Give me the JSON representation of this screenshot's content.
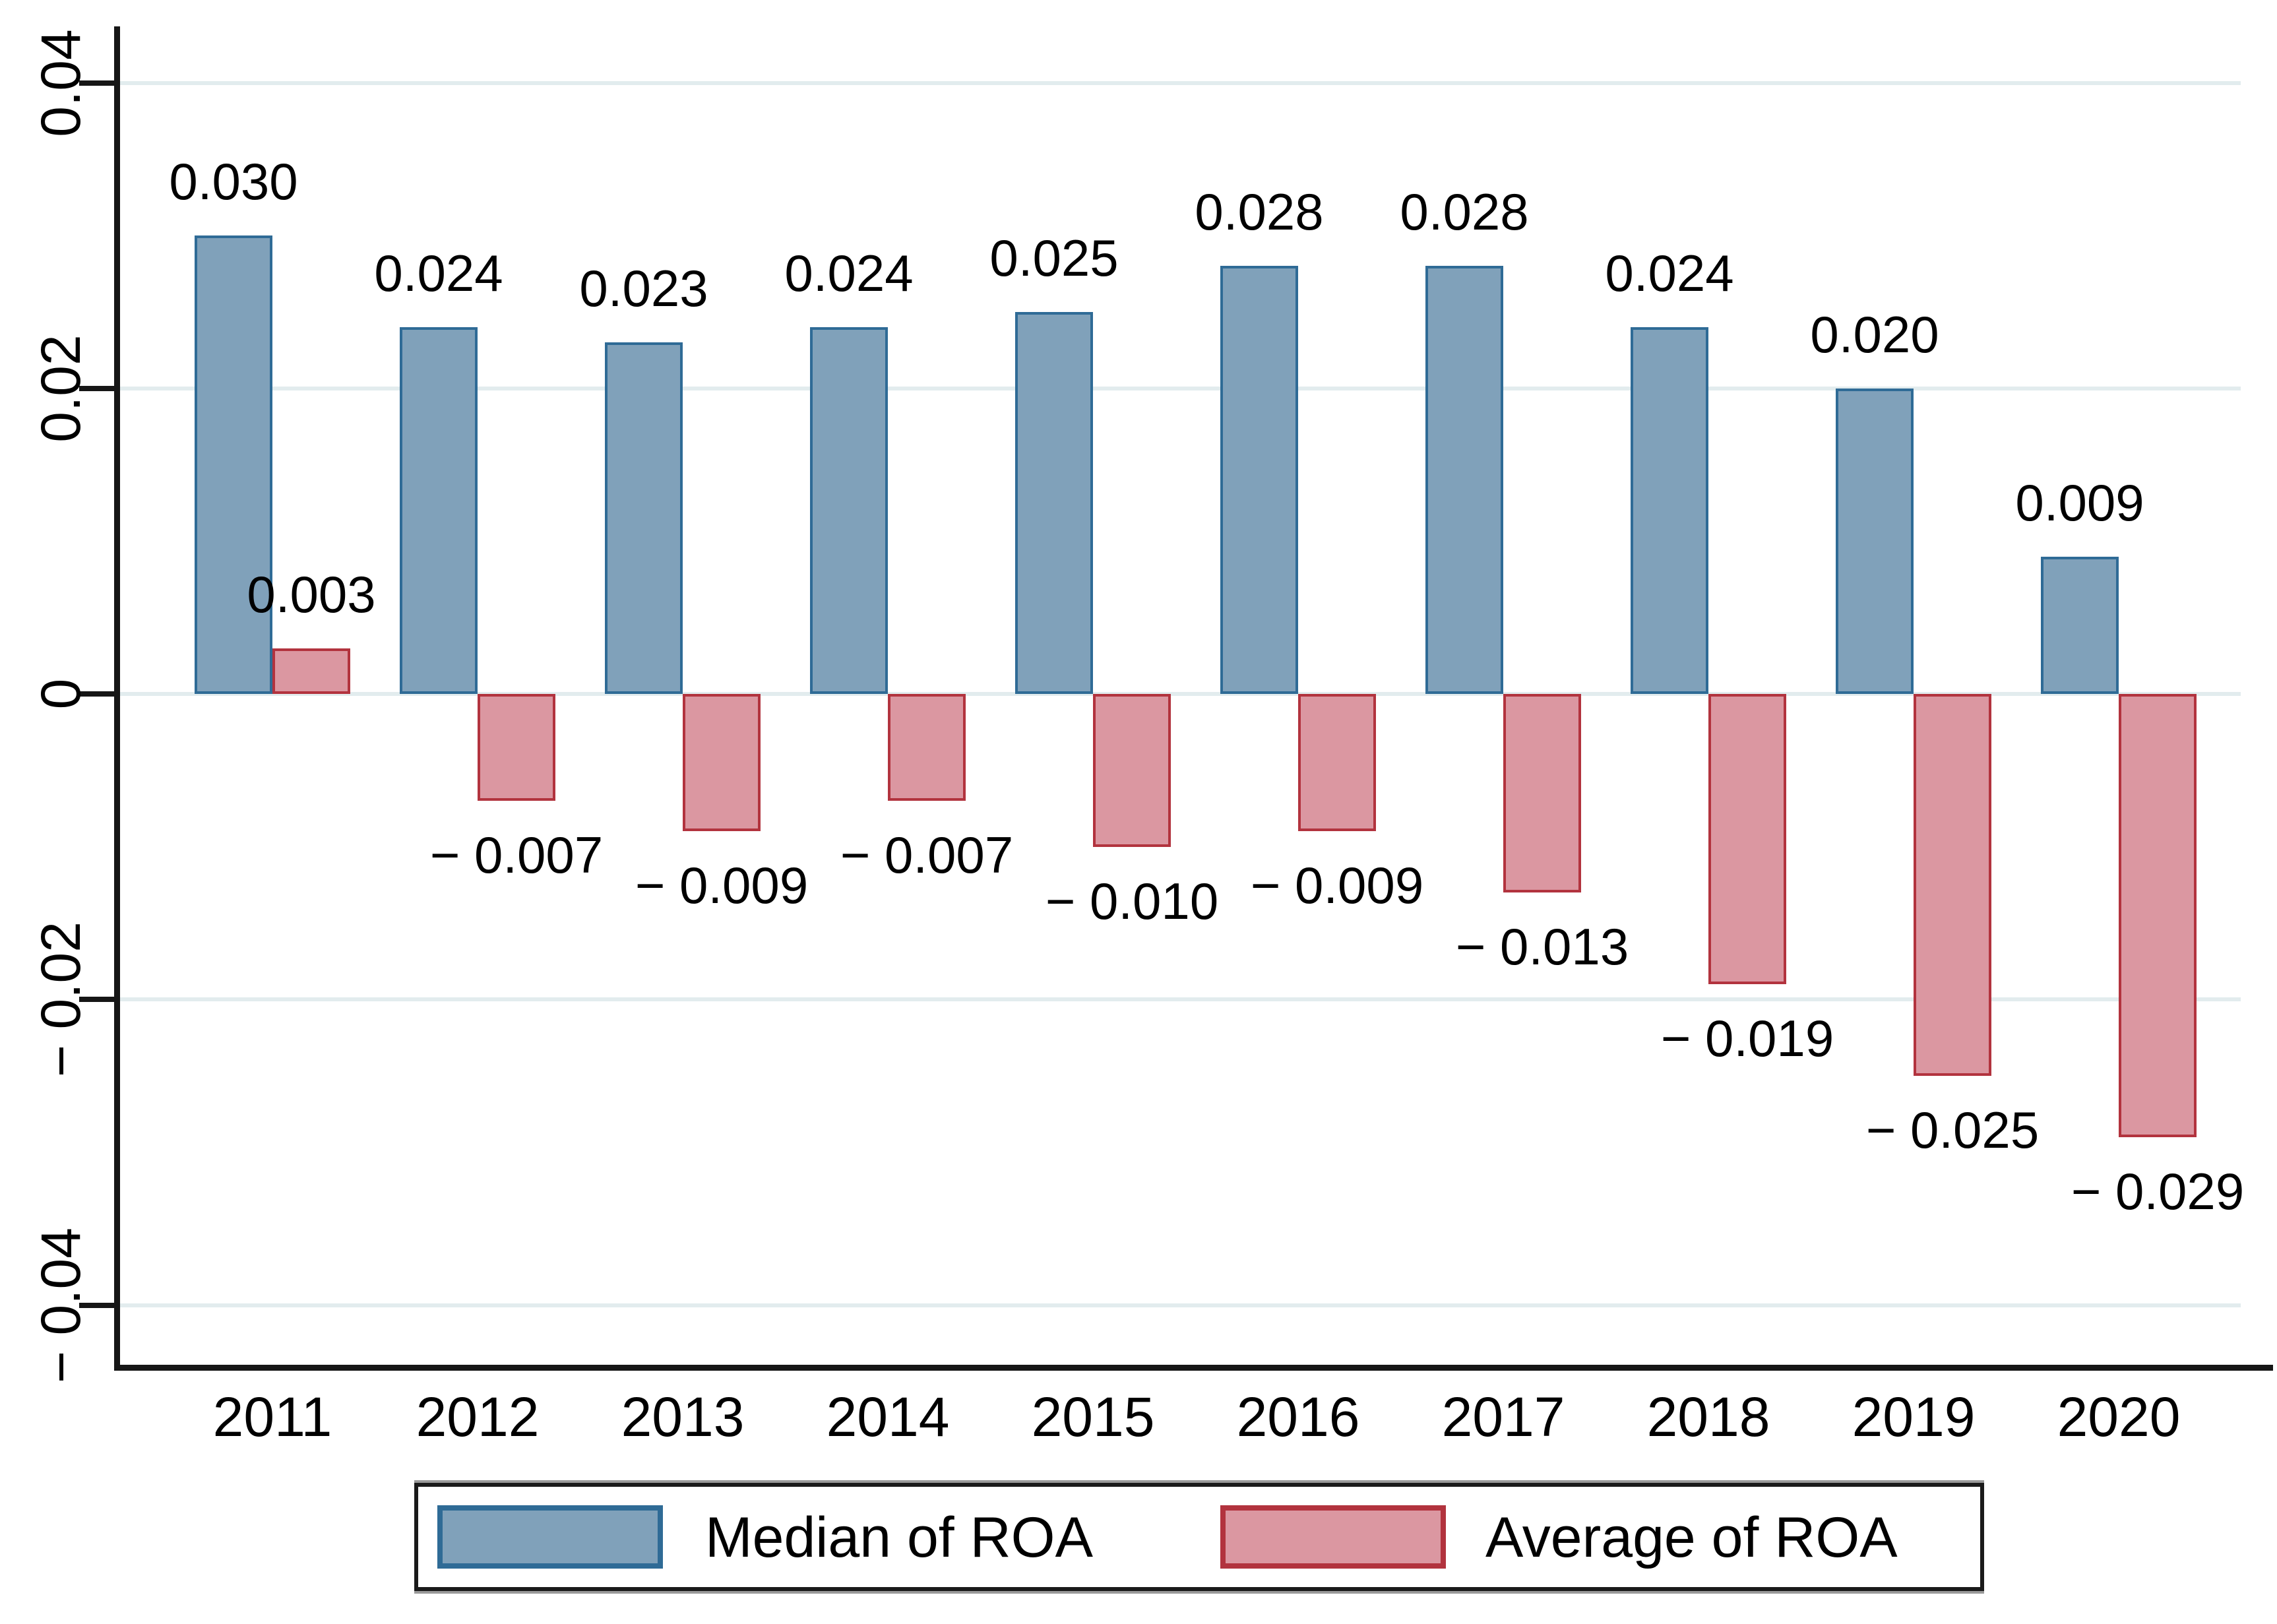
{
  "chart_data": {
    "type": "bar",
    "title": "",
    "xlabel": "",
    "ylabel": "",
    "categories": [
      "2011",
      "2012",
      "2013",
      "2014",
      "2015",
      "2016",
      "2017",
      "2018",
      "2019",
      "2020"
    ],
    "series": [
      {
        "name": "Median of ROA",
        "fill_color": "#80A1BA",
        "border_color": "#2F6B96",
        "values": [
          0.03,
          0.024,
          0.023,
          0.024,
          0.025,
          0.028,
          0.028,
          0.024,
          0.02,
          0.009
        ],
        "labels": [
          "0.030",
          "0.024",
          "0.023",
          "0.024",
          "0.025",
          "0.028",
          "0.028",
          "0.024",
          "0.020",
          "0.009"
        ]
      },
      {
        "name": "Average of ROA",
        "fill_color": "#DB97A1",
        "border_color": "#B2333E",
        "values": [
          0.003,
          -0.007,
          -0.009,
          -0.007,
          -0.01,
          -0.009,
          -0.013,
          -0.019,
          -0.025,
          -0.029
        ],
        "labels": [
          "0.003",
          "− 0.007",
          "− 0.009",
          "− 0.007",
          "− 0.010",
          "− 0.009",
          "− 0.013",
          "− 0.019",
          "− 0.025",
          "− 0.029"
        ]
      }
    ],
    "y_axis": {
      "ticks": [
        0.04,
        0.02,
        0,
        -0.02,
        -0.04
      ],
      "tick_labels": [
        "0.04",
        "0.02",
        "0",
        "− 0.02",
        "− 0.04"
      ],
      "range": [
        -0.0439,
        0.0437
      ],
      "grid": true,
      "gridline_color": "#E2ECEE"
    },
    "legend": {
      "position": "bottom",
      "entries": [
        "Median of ROA",
        "Average of ROA"
      ]
    }
  }
}
